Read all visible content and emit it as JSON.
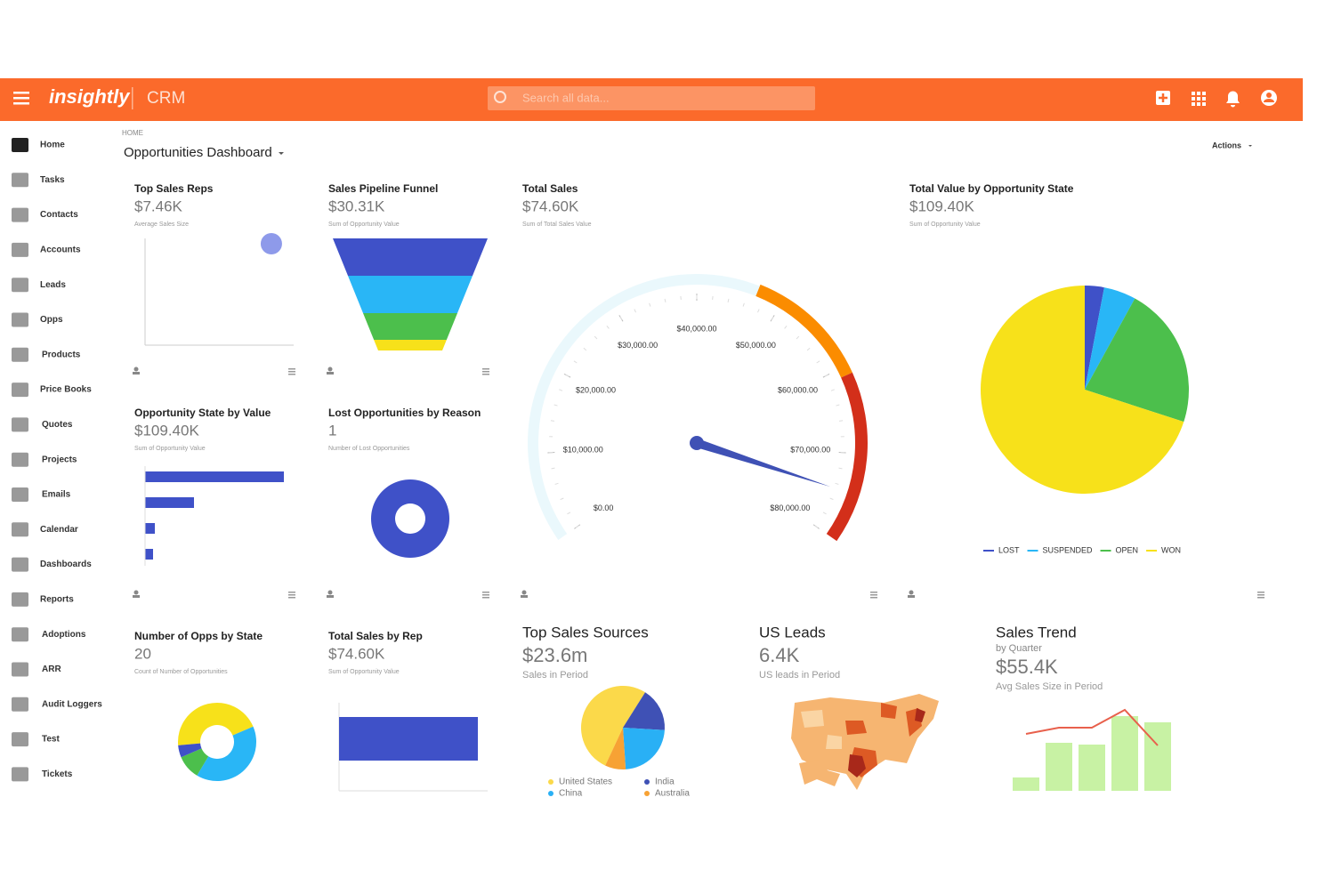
{
  "header": {
    "logo": "insightly",
    "app": "CRM",
    "search_placeholder": "Search all data..."
  },
  "sidebar": [
    "Home",
    "Tasks",
    "Contacts",
    "Accounts",
    "Leads",
    "Opps",
    "Products",
    "Price Books",
    "Quotes",
    "Projects",
    "Emails",
    "Calendar",
    "Dashboards",
    "Reports",
    "Adoptions",
    "ARR",
    "Audit Loggers",
    "Test",
    "Tickets"
  ],
  "page": {
    "breadcrumb": "HOME",
    "title": "Opportunities Dashboard",
    "actions": "Actions"
  },
  "widgets": [
    {
      "title": "Top Sales Reps",
      "value": "$7.46K",
      "caption": "Average Sales Size",
      "chart": {
        "type": "scatter",
        "x": [
          0.85
        ],
        "values": [
          0.95
        ],
        "xlim": [
          0,
          1
        ],
        "ylim": [
          0,
          1
        ],
        "color": "#8e9aea"
      }
    },
    {
      "title": "Sales Pipeline Funnel",
      "value": "$30.31K",
      "caption": "Sum of Opportunity Value",
      "chart": {
        "type": "funnel",
        "values": [
          42,
          42,
          30,
          12
        ],
        "colors": [
          "#3f51c8",
          "#29b6f6",
          "#4cbf4c",
          "#f7e11a"
        ]
      }
    },
    {
      "title": "Total Sales",
      "value": "$74.60K",
      "caption": "Sum of Total Sales Value",
      "chart": {
        "type": "gauge",
        "value": 74600,
        "min": 0,
        "max": 80000,
        "color": "#3f51b5",
        "ticks": [
          {
            "value": 0,
            "label": "$0.00"
          },
          {
            "value": 10000,
            "label": "$10,000.00"
          },
          {
            "value": 20000,
            "label": "$20,000.00"
          },
          {
            "value": 30000,
            "label": "$30,000.00"
          },
          {
            "value": 40000,
            "label": "$40,000.00"
          },
          {
            "value": 50000,
            "label": "$50,000.00"
          },
          {
            "value": 60000,
            "label": "$60,000.00"
          },
          {
            "value": 70000,
            "label": "$70,000.00"
          },
          {
            "value": 80000,
            "label": "$80,000.00"
          }
        ],
        "bands": [
          {
            "from": 0,
            "to": 47000,
            "color": "#eaf8fc"
          },
          {
            "from": 47000,
            "to": 61000,
            "color": "#fb8c00"
          },
          {
            "from": 61000,
            "to": 80000,
            "color": "#d32f1a"
          }
        ]
      }
    },
    {
      "title": "Total Value by Opportunity State",
      "value": "$109.40K",
      "caption": "Sum of Opportunity Value",
      "chart": {
        "type": "pie",
        "categories": [
          "LOST",
          "SUSPENDED",
          "OPEN",
          "WON"
        ],
        "values": [
          3,
          5,
          22,
          70
        ],
        "colors": [
          "#3f51c8",
          "#29b6f6",
          "#4cbf4c",
          "#f7e11a"
        ]
      }
    },
    {
      "title": "Opportunity State by Value",
      "value": "$109.40K",
      "caption": "Sum of Opportunity Value",
      "chart": {
        "type": "hbar",
        "values": [
          156,
          55,
          11,
          9
        ],
        "xlim": [
          0,
          160
        ],
        "color": "#3f51c8"
      }
    },
    {
      "title": "Lost Opportunities by Reason",
      "value": "1",
      "caption": "Number of Lost Opportunities",
      "chart": {
        "type": "donut",
        "values": [
          1
        ],
        "colors": [
          "#3f51c8"
        ]
      }
    },
    {
      "title": "Number of Opps by State",
      "value": "20",
      "caption": "Count of Number of Opportunities",
      "chart": {
        "type": "donut",
        "values": [
          9,
          8,
          2,
          1
        ],
        "colors": [
          "#f7e11a",
          "#29b6f6",
          "#4cbf4c",
          "#3f51c8"
        ]
      }
    },
    {
      "title": "Total Sales by Rep",
      "value": "$74.60K",
      "caption": "Sum of Opportunity Value",
      "chart": {
        "type": "hbar",
        "values": [
          1
        ],
        "xlim": [
          0,
          1
        ],
        "color": "#3f51c8"
      }
    },
    {
      "title": "Top Sales Sources",
      "value": "$23.6m",
      "caption": "Sales in Period",
      "chart": {
        "type": "pie",
        "categories": [
          "United States",
          "India",
          "China",
          "Australia"
        ],
        "values": [
          52,
          17,
          23,
          8
        ],
        "colors": [
          "#fbd94a",
          "#3f51b5",
          "#29b0f5",
          "#f7a234"
        ]
      }
    },
    {
      "title": "US Leads",
      "value": "6.4K",
      "caption": "US leads in Period",
      "chart": {
        "type": "map"
      }
    },
    {
      "title": "Sales Trend",
      "subtitle": "by Quarter",
      "value": "$55.4K",
      "caption": "Avg Sales Size in Period",
      "chart": {
        "type": "combo",
        "values": [
          15,
          54,
          52,
          84,
          77
        ],
        "line": [
          64,
          71,
          71,
          91,
          51
        ],
        "ylim": [
          0,
          100
        ],
        "color": "#c8f2a4",
        "line_color": "#e8604c"
      }
    }
  ]
}
